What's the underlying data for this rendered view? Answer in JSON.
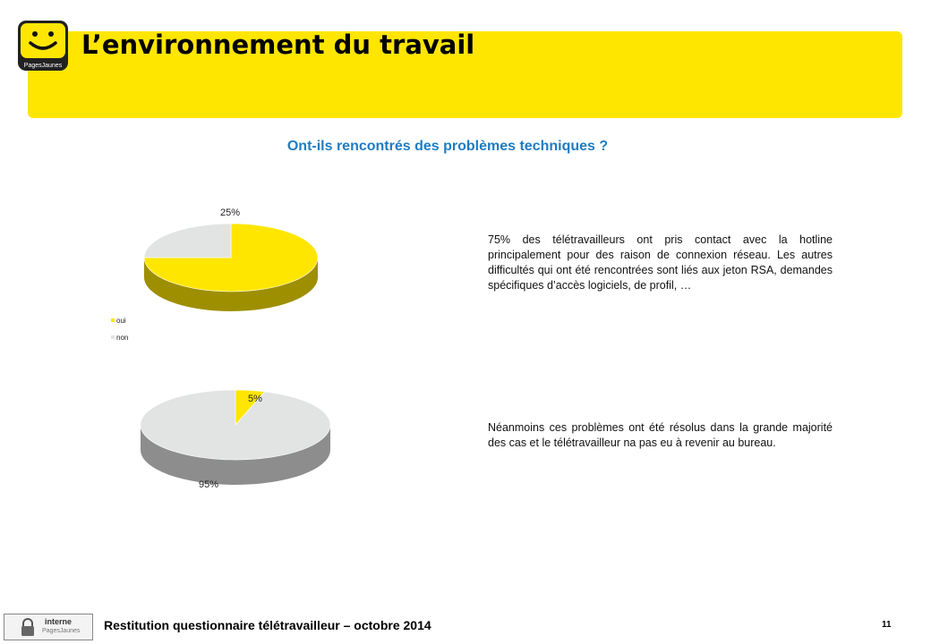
{
  "header": {
    "title": "L’environnement du travail",
    "brand_colors": {
      "yellow": "#ffe600",
      "dark": "#1a1a1a"
    },
    "logo_text": "PagesJaunes"
  },
  "subtitle": "Ont-ils rencontrés des problèmes techniques ?",
  "chart_data": [
    {
      "type": "pie",
      "title": "",
      "labels": [
        "oui",
        "non"
      ],
      "values": [
        75,
        25
      ],
      "data_labels": [
        "",
        "25%"
      ],
      "colors": [
        "#ffe600",
        "#e1e4e2"
      ],
      "legend": "bottom-left",
      "legend_items": [
        "oui",
        "non"
      ]
    },
    {
      "type": "pie",
      "title": "",
      "labels": [
        "oui",
        "non"
      ],
      "values": [
        5,
        95
      ],
      "data_labels": [
        "5%",
        "95%"
      ],
      "colors": [
        "#ffe600",
        "#e1e4e2"
      ]
    }
  ],
  "paragraphs": {
    "first": "75% des télétravailleurs ont pris contact avec la hotline principalement pour des raison de connexion réseau. Les autres difficultés qui ont été rencontrées sont liés aux jeton RSA, demandes spécifiques d’accès logiciels, de profil, …",
    "second": "Néanmoins ces problèmes ont été résolus dans la grande majorité des cas et le télétravailleur na pas eu à revenir au bureau."
  },
  "footer": {
    "badge_label": "interne",
    "badge_brand": "PagesJaunes",
    "text": "Restitution questionnaire télétravailleur – octobre 2014",
    "page_number": "11"
  }
}
